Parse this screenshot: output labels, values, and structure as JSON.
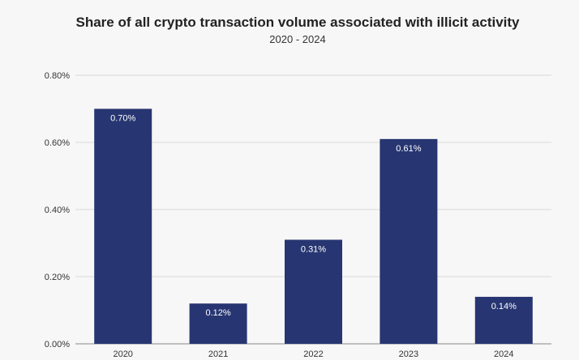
{
  "chart_data": {
    "type": "bar",
    "title": "Share of all crypto transaction volume associated with illicit activity",
    "subtitle": "2020 - 2024",
    "categories": [
      "2020",
      "2021",
      "2022",
      "2023",
      "2024"
    ],
    "values": [
      0.7,
      0.12,
      0.31,
      0.61,
      0.14
    ],
    "data_labels": [
      "0.70%",
      "0.12%",
      "0.31%",
      "0.61%",
      "0.14%"
    ],
    "ylim": [
      0,
      0.8
    ],
    "yticks": [
      0,
      0.2,
      0.4,
      0.6,
      0.8
    ],
    "ytick_labels": [
      "0.00%",
      "0.20%",
      "0.40%",
      "0.60%",
      "0.80%"
    ],
    "xlabel": "",
    "ylabel": "",
    "grid": true,
    "legend": "none",
    "colors": {
      "bar": "#273672",
      "grid": "#d9d9d9",
      "background": "#f7f7f7"
    }
  }
}
